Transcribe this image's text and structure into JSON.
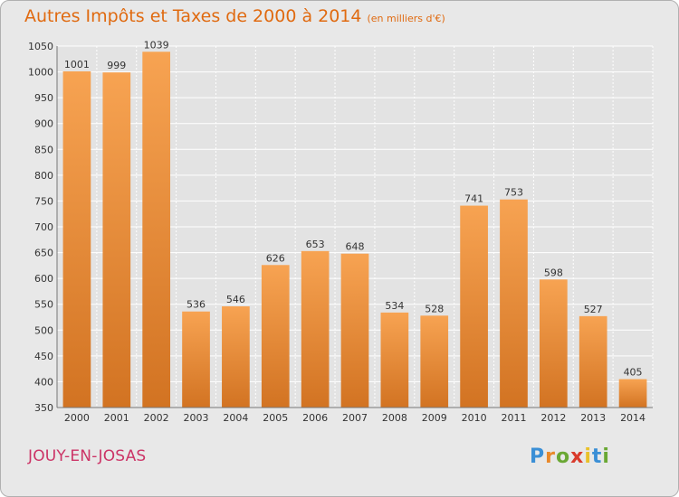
{
  "header": {
    "title": "Autres Impôts et Taxes de 2000 à 2014",
    "subtitle": "(en milliers d'€)"
  },
  "footer": {
    "location": "JOUY-EN-JOSAS",
    "logo_letters": [
      "P",
      "r",
      "o",
      "x",
      "i",
      "t",
      "i"
    ],
    "logo_colors": [
      "#3a8fd6",
      "#e9892a",
      "#6aa834",
      "#d93a2b",
      "#e9c12a",
      "#3a8fd6",
      "#6aa834"
    ]
  },
  "colors": {
    "title": "#e06a10",
    "location": "#cc3366",
    "bar_top": "#f7a352",
    "bar_bottom": "#d27322",
    "grid": "#ffffff",
    "axis_text": "#333333"
  },
  "chart_data": {
    "type": "bar",
    "categories": [
      "2000",
      "2001",
      "2002",
      "2003",
      "2004",
      "2005",
      "2006",
      "2007",
      "2008",
      "2009",
      "2010",
      "2011",
      "2012",
      "2013",
      "2014"
    ],
    "values": [
      1001,
      999,
      1039,
      536,
      546,
      626,
      653,
      648,
      534,
      528,
      741,
      753,
      598,
      527,
      405
    ],
    "ylim": [
      350,
      1050
    ],
    "yticks": [
      350,
      400,
      450,
      500,
      550,
      600,
      650,
      700,
      750,
      800,
      850,
      900,
      950,
      1000,
      1050
    ],
    "grid": true,
    "data_labels": true
  }
}
